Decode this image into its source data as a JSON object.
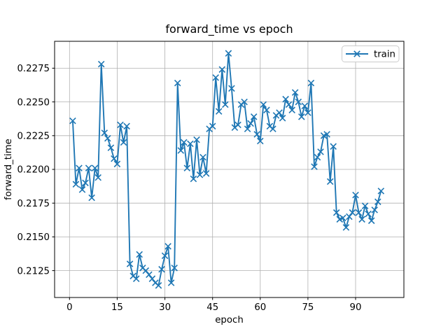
{
  "figure": {
    "background": "#ffffff"
  },
  "chart_data": {
    "type": "line",
    "title": "forward_time vs epoch",
    "xlabel": "epoch",
    "ylabel": "forward_time",
    "legend": {
      "label": "train",
      "position": "upper right"
    },
    "grid": true,
    "colors": {
      "series": "#1f77b4",
      "grid": "#b0b0b0",
      "spine": "#000000",
      "legend_border": "#cccccc"
    },
    "xlim": [
      -4.7,
      105.2
    ],
    "ylim": [
      0.21051,
      0.22949
    ],
    "xticks": [
      0,
      15,
      30,
      45,
      60,
      75,
      90
    ],
    "yticks": [
      0.2125,
      0.215,
      0.2175,
      0.22,
      0.2225,
      0.225,
      0.2275
    ],
    "ytick_decimals": 4,
    "series": [
      {
        "name": "train",
        "color": "#1f77b4",
        "marker": "x",
        "x": [
          1,
          2,
          3,
          4,
          5,
          6,
          7,
          8,
          9,
          10,
          11,
          12,
          13,
          14,
          15,
          16,
          17,
          18,
          19,
          20,
          21,
          22,
          23,
          24,
          25,
          26,
          27,
          28,
          29,
          30,
          31,
          32,
          33,
          34,
          35,
          36,
          37,
          38,
          39,
          40,
          41,
          42,
          43,
          44,
          45,
          46,
          47,
          48,
          49,
          50,
          51,
          52,
          53,
          54,
          55,
          56,
          57,
          58,
          59,
          60,
          61,
          62,
          63,
          64,
          65,
          66,
          67,
          68,
          69,
          70,
          71,
          72,
          73,
          74,
          75,
          76,
          77,
          78,
          79,
          80,
          81,
          82,
          83,
          84,
          85,
          86,
          87,
          88,
          89,
          90,
          91,
          92,
          93,
          94,
          95,
          96,
          97,
          98
        ],
        "y": [
          0.2236,
          0.2189,
          0.2201,
          0.2185,
          0.219,
          0.2201,
          0.2179,
          0.2201,
          0.2194,
          0.2278,
          0.2227,
          0.2223,
          0.2216,
          0.2208,
          0.2204,
          0.2233,
          0.222,
          0.2232,
          0.213,
          0.2121,
          0.2119,
          0.2137,
          0.2127,
          0.2125,
          0.2122,
          0.2119,
          0.2116,
          0.2114,
          0.2126,
          0.2136,
          0.2143,
          0.2116,
          0.2127,
          0.2264,
          0.2214,
          0.222,
          0.2201,
          0.2219,
          0.2193,
          0.2222,
          0.2196,
          0.2209,
          0.2197,
          0.223,
          0.2232,
          0.2268,
          0.2243,
          0.2274,
          0.2248,
          0.2286,
          0.226,
          0.2231,
          0.2233,
          0.2248,
          0.225,
          0.223,
          0.2234,
          0.2239,
          0.2226,
          0.2221,
          0.2248,
          0.2244,
          0.2232,
          0.223,
          0.224,
          0.2242,
          0.2238,
          0.2252,
          0.2248,
          0.2244,
          0.2257,
          0.225,
          0.2239,
          0.2247,
          0.2242,
          0.2264,
          0.2202,
          0.2209,
          0.2213,
          0.2225,
          0.2226,
          0.2191,
          0.2217,
          0.2168,
          0.2163,
          0.2164,
          0.2157,
          0.2165,
          0.2168,
          0.2181,
          0.2168,
          0.2163,
          0.2173,
          0.2167,
          0.2162,
          0.217,
          0.2176,
          0.2184
        ]
      }
    ]
  }
}
